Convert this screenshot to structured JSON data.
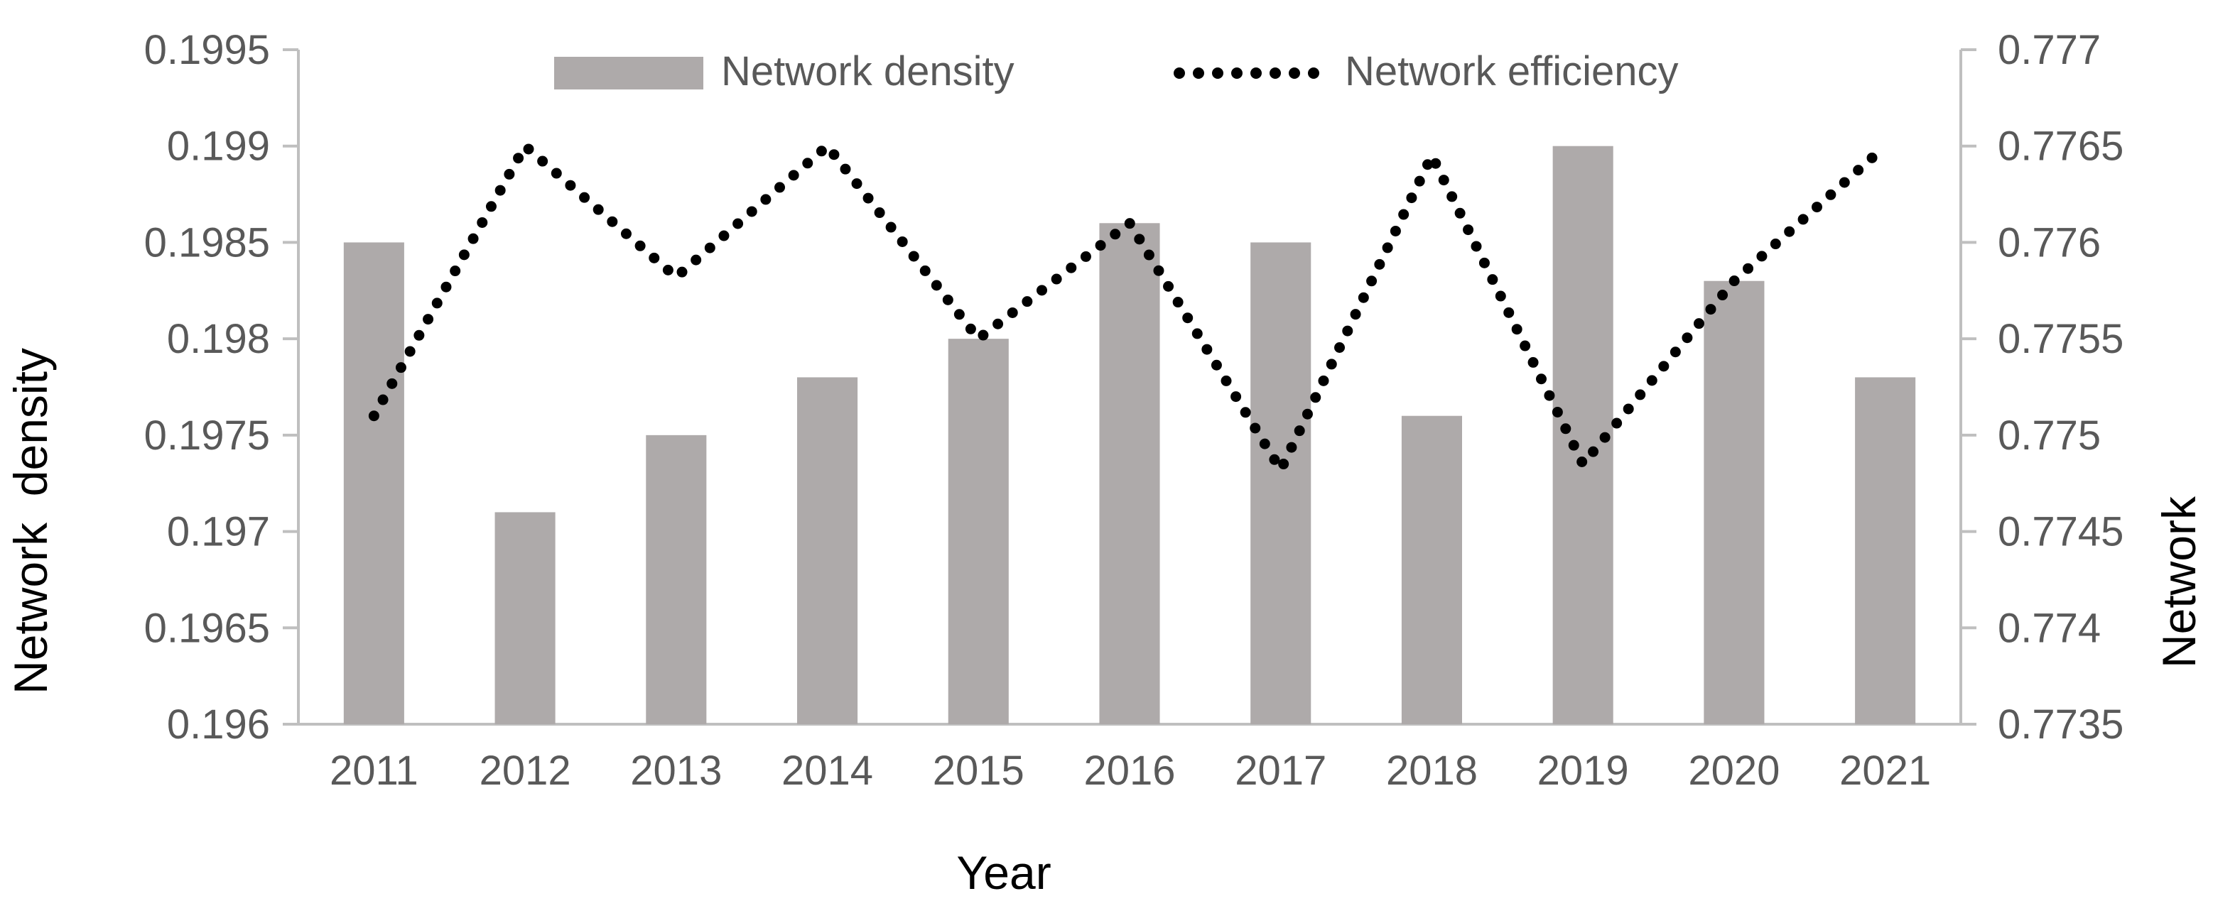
{
  "chart_data": {
    "type": "bar",
    "categories": [
      "2011",
      "2012",
      "2013",
      "2014",
      "2015",
      "2016",
      "2017",
      "2018",
      "2019",
      "2020",
      "2021"
    ],
    "series": [
      {
        "name": "Network density",
        "type": "bar",
        "axis": "left",
        "color": "#aeaaaa",
        "values": [
          0.1985,
          0.1971,
          0.1975,
          0.1978,
          0.198,
          0.1986,
          0.1985,
          0.1976,
          0.199,
          0.1983,
          0.1978
        ]
      },
      {
        "name": "Network efficiency",
        "type": "line",
        "style": "dotted",
        "axis": "right",
        "color": "#000000",
        "values": [
          0.7751,
          0.7765,
          0.77582,
          0.7765,
          0.7755,
          0.7761,
          0.77482,
          0.77645,
          0.77485,
          0.7758,
          0.7765
        ]
      }
    ],
    "xlabel": "Year",
    "ylabel": "Network  density",
    "y2label": "Network",
    "ylim": [
      0.196,
      0.1995
    ],
    "y2lim": [
      0.7735,
      0.777
    ],
    "yticks": [
      "0.196",
      "0.1965",
      "0.197",
      "0.1975",
      "0.198",
      "0.1985",
      "0.199",
      "0.1995"
    ],
    "y2ticks": [
      "0.7735",
      "0.774",
      "0.7745",
      "0.775",
      "0.7755",
      "0.776",
      "0.7765",
      "0.777"
    ],
    "grid": false,
    "legend_position": "top-center"
  }
}
